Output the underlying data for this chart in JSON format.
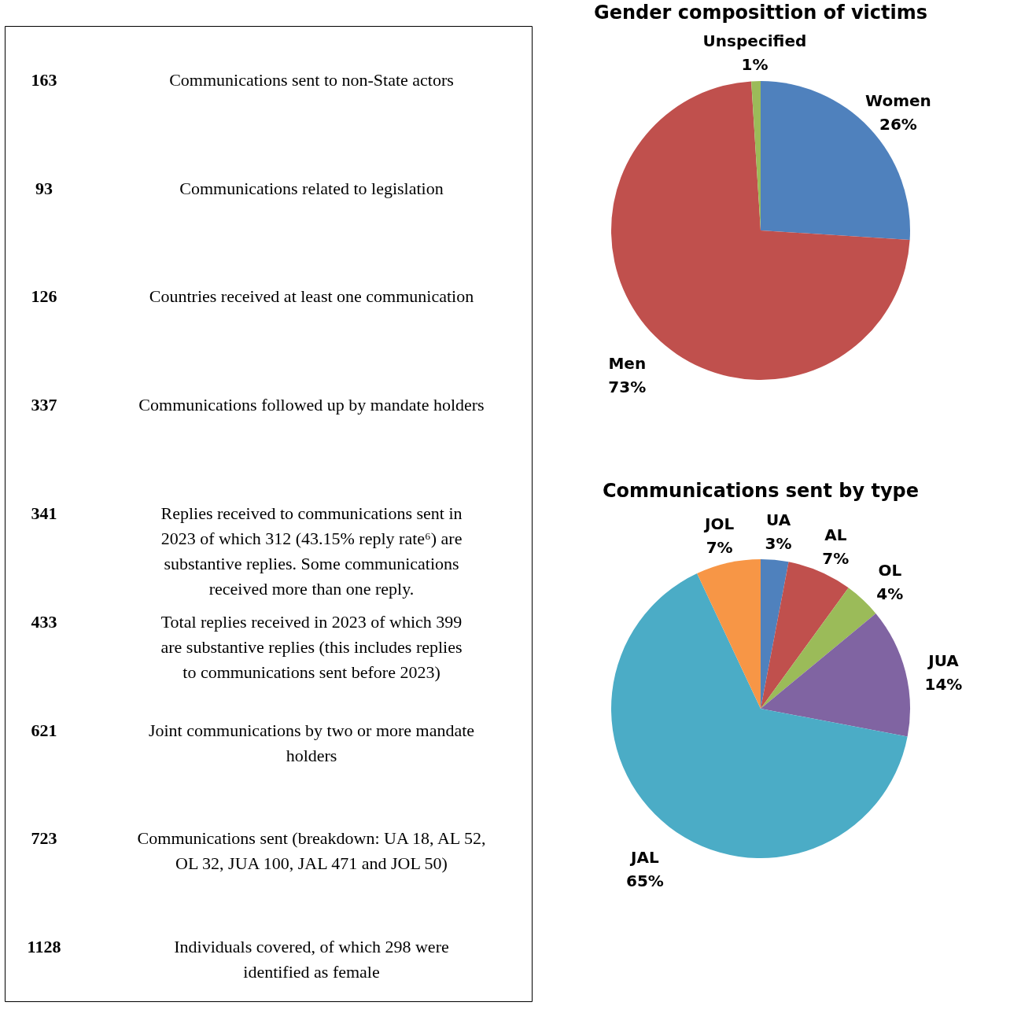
{
  "chart_data": [
    {
      "type": "other",
      "data_labels": true,
      "values": [
        163,
        93,
        126,
        337,
        341,
        433,
        621,
        723,
        1128
      ],
      "categories": [
        "Communications sent to non-State actors",
        "Communications related to legislation",
        "Countries received at least one communication",
        "Communications followed up by mandate holders",
        "Replies received to communications sent in 2023 of which 312 (43.15% reply rate⁶) are substantive replies. Some communications received more than one reply.",
        "Total replies received in 2023 of which 399 are substantive replies (this includes replies to communications sent before 2023)",
        "Joint communications by two or more mandate holders",
        "Communications sent (breakdown: UA 18, AL 52, OL 32, JUA 100, JAL 471 and JOL 50)",
        "Individuals covered, of which 298 were identified as female"
      ]
    },
    {
      "type": "pie",
      "title": "Gender composittion of victims",
      "categories": [
        "Women",
        "Men",
        "Unspecified"
      ],
      "values": [
        26,
        73,
        1
      ],
      "value_labels": [
        "26%",
        "73%",
        "1%"
      ],
      "colors": [
        "#4f81bd",
        "#c0504d",
        "#9bbb59"
      ]
    },
    {
      "type": "pie",
      "title": "Communications sent by type",
      "categories": [
        "UA",
        "AL",
        "OL",
        "JUA",
        "JAL",
        "JOL"
      ],
      "values": [
        3,
        7,
        4,
        14,
        65,
        7
      ],
      "value_labels": [
        "3%",
        "7%",
        "4%",
        "14%",
        "65%",
        "7%"
      ],
      "colors": [
        "#4f81bd",
        "#c0504d",
        "#9bbb59",
        "#8064a2",
        "#4bacc6",
        "#f79646"
      ]
    }
  ]
}
